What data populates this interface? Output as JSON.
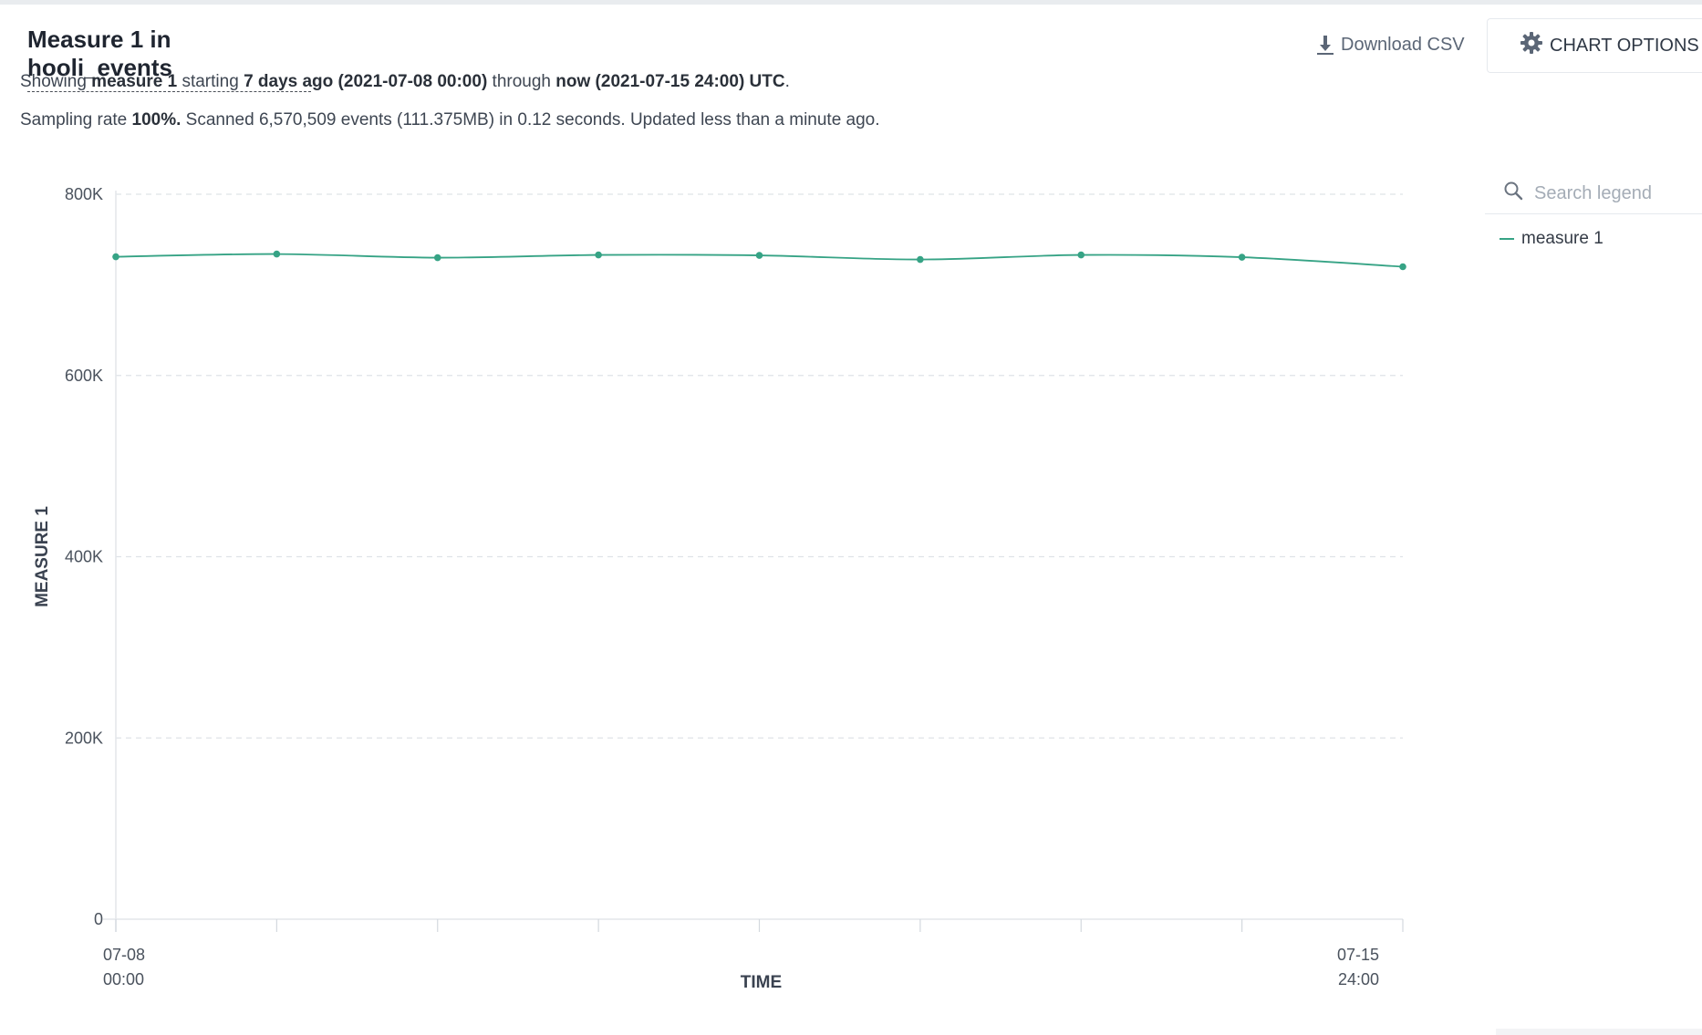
{
  "header": {
    "title": "Measure 1 in hooli_events",
    "line1": {
      "t1": "Showing ",
      "b1": "measure 1",
      "t2": " starting ",
      "b2": "7 days ago (2021-07-08 00:00)",
      "t3": " through ",
      "b3": "now (2021-07-15 24:00) UTC",
      "t4": "."
    },
    "line2": {
      "t1": "Sampling rate ",
      "b1": "100%.",
      "t2": " Scanned 6,570,509 events (111.375MB) in 0.12 seconds. Updated less than a minute ago."
    }
  },
  "toolbar": {
    "download_label": "Download CSV",
    "chart_options_label": "CHART OPTIONS",
    "download_icon": "download-icon",
    "options_icon": "gear-icon"
  },
  "legend": {
    "search_placeholder": "Search legend",
    "search_icon": "search-icon",
    "items": [
      {
        "label": "measure 1",
        "color": "#36a385"
      }
    ]
  },
  "chart_data": {
    "type": "line",
    "xlabel": "TIME",
    "ylabel": "MEASURE 1",
    "x_tick_labels": [
      {
        "line1": "07-08",
        "line2": "00:00"
      },
      {
        "line1": "07-15",
        "line2": "24:00"
      }
    ],
    "y_ticks": [
      0,
      200000,
      400000,
      600000,
      800000
    ],
    "y_tick_labels": [
      "0",
      "200K",
      "400K",
      "600K",
      "800K"
    ],
    "ylim": [
      0,
      800000
    ],
    "grid": true,
    "series": [
      {
        "name": "measure 1",
        "color": "#36a385",
        "x": [
          "2021-07-08 00:00",
          "2021-07-09 00:00",
          "2021-07-10 00:00",
          "2021-07-11 00:00",
          "2021-07-12 00:00",
          "2021-07-13 00:00",
          "2021-07-14 00:00",
          "2021-07-15 00:00",
          "2021-07-15 24:00"
        ],
        "values": [
          731000,
          734000,
          730000,
          733000,
          732500,
          728000,
          733000,
          730500,
          720000
        ]
      }
    ]
  }
}
